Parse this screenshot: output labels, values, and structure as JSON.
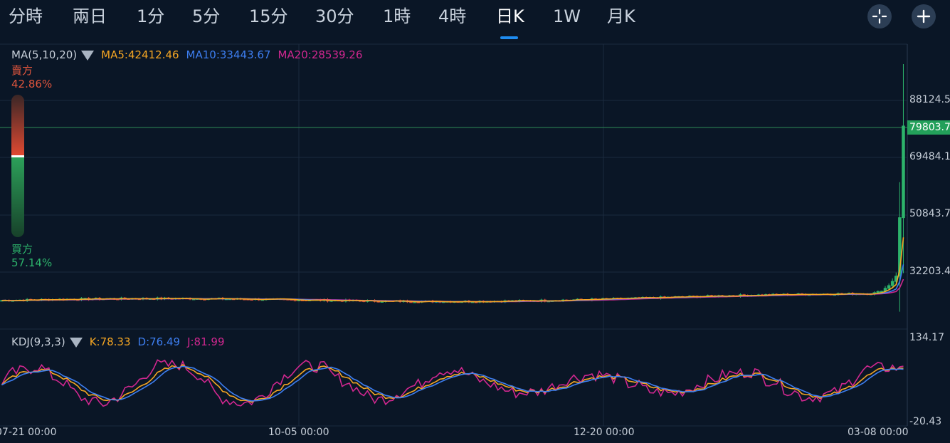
{
  "tabs": [
    {
      "label": "分時"
    },
    {
      "label": "兩日"
    },
    {
      "label": "1分"
    },
    {
      "label": "5分"
    },
    {
      "label": "15分"
    },
    {
      "label": "30分"
    },
    {
      "label": "1時"
    },
    {
      "label": "4時"
    },
    {
      "label": "日K",
      "active": true
    },
    {
      "label": "1W"
    },
    {
      "label": "月K"
    }
  ],
  "toolbar": {
    "icons": [
      "crosshair-icon",
      "fullscreen-cross-icon"
    ]
  },
  "ma_legend": {
    "label": "MA(5,10,20)",
    "ma5": "MA5:42412.46",
    "ma10": "MA10:33443.67",
    "ma20": "MA20:28539.26",
    "colors": {
      "ma5": "#f5a623",
      "ma10": "#3d7ef0",
      "ma20": "#d0278f"
    }
  },
  "order_ratio": {
    "sell_label": "賣方",
    "sell_pct": "42.86%",
    "sell_value": 0.4286,
    "buy_label": "買方",
    "buy_pct": "57.14%",
    "buy_value": 0.5714,
    "colors": {
      "sell": "#e0553d",
      "buy": "#2db36b"
    }
  },
  "price_axis": [
    "88124.5",
    "69484.1",
    "50843.7",
    "32203.4"
  ],
  "last_price": "79803.7",
  "kdj_legend": {
    "label": "KDJ(9,3,3)",
    "k": "K:78.33",
    "d": "D:76.49",
    "j": "J:81.99",
    "colors": {
      "k": "#f5a623",
      "d": "#3d7ef0",
      "j": "#d0278f"
    }
  },
  "kdj_axis": {
    "top": "134.17",
    "bottom": "-20.43"
  },
  "time_axis": [
    "07-21 00:00",
    "10-05 00:00",
    "12-20 00:00",
    "03-08 00:00"
  ],
  "chart_data": [
    {
      "type": "candlestick",
      "title": "",
      "ylabel": "",
      "y_ticks": [
        88124.5,
        69484.1,
        50843.7,
        32203.4
      ],
      "last_price": 79803.7,
      "x_ticks": [
        "07-21 00:00",
        "10-05 00:00",
        "12-20 00:00",
        "03-08 00:00"
      ],
      "series": [
        {
          "name": "MA5",
          "value": 42412.46
        },
        {
          "name": "MA10",
          "value": 33443.67
        },
        {
          "name": "MA20",
          "value": 28539.26
        }
      ],
      "grid": true
    },
    {
      "type": "line",
      "title": "",
      "ylim": [
        -20.43,
        134.17
      ],
      "series": [
        {
          "name": "K",
          "value": 78.33
        },
        {
          "name": "D",
          "value": 76.49
        },
        {
          "name": "J",
          "value": 81.99
        }
      ]
    }
  ]
}
